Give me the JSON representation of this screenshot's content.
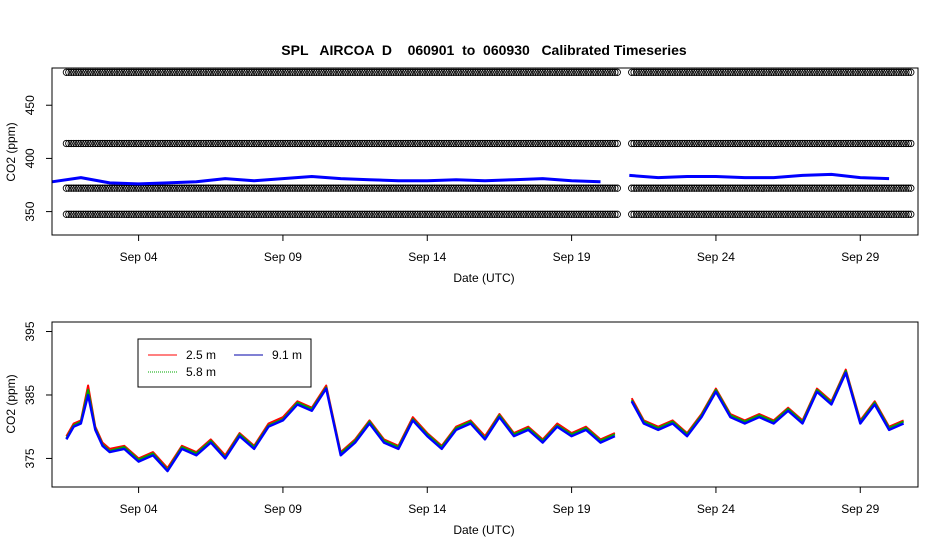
{
  "title": "SPL   AIRCOA  D    060901  to  060930   Calibrated Timeseries",
  "chart_data": [
    {
      "type": "scatter",
      "xlabel": "Date (UTC)",
      "ylabel": "CO2 (ppm)",
      "xlim": [
        "2006-09-01",
        "2006-09-31"
      ],
      "ylim": [
        328,
        485
      ],
      "x_ticks": [
        "Sep 04",
        "Sep 09",
        "Sep 14",
        "Sep 19",
        "Sep 24",
        "Sep 29"
      ],
      "x_tick_dates": [
        "2006-09-04",
        "2006-09-09",
        "2006-09-14",
        "2006-09-19",
        "2006-09-24",
        "2006-09-29"
      ],
      "y_ticks": [
        350,
        400,
        450
      ],
      "data_gap": [
        "2006-09-20T14:00",
        "2006-09-21T01:00"
      ],
      "data_range": [
        "2006-09-01T12:00",
        "2006-09-30T19:00"
      ],
      "calibration_levels": [
        347.5,
        372,
        414,
        481
      ],
      "series": [
        {
          "color": "#000000",
          "marker": "open-circle",
          "values_type": "calibration-standards"
        },
        {
          "color": "#0000ff",
          "marker": "line",
          "x": [
            "2006-09-01",
            "2006-09-02",
            "2006-09-03",
            "2006-09-04",
            "2006-09-05",
            "2006-09-06",
            "2006-09-07",
            "2006-09-08",
            "2006-09-09",
            "2006-09-10",
            "2006-09-11",
            "2006-09-12",
            "2006-09-13",
            "2006-09-14",
            "2006-09-15",
            "2006-09-16",
            "2006-09-17",
            "2006-09-18",
            "2006-09-19",
            "2006-09-20",
            "2006-09-21",
            "2006-09-22",
            "2006-09-23",
            "2006-09-24",
            "2006-09-25",
            "2006-09-26",
            "2006-09-27",
            "2006-09-28",
            "2006-09-29",
            "2006-09-30"
          ],
          "values": [
            378,
            382,
            377,
            376,
            377,
            378,
            381,
            379,
            381,
            383,
            381,
            380,
            379,
            379,
            380,
            379,
            380,
            381,
            379,
            378,
            384,
            382,
            383,
            383,
            382,
            382,
            384,
            385,
            382,
            381
          ]
        }
      ]
    },
    {
      "type": "line",
      "xlabel": "Date (UTC)",
      "ylabel": "CO2 (ppm)",
      "xlim": [
        "2006-09-01",
        "2006-09-31"
      ],
      "ylim": [
        370.5,
        396.5
      ],
      "x_ticks": [
        "Sep 04",
        "Sep 09",
        "Sep 14",
        "Sep 19",
        "Sep 24",
        "Sep 29"
      ],
      "x_tick_dates": [
        "2006-09-04",
        "2006-09-09",
        "2006-09-14",
        "2006-09-19",
        "2006-09-24",
        "2006-09-29"
      ],
      "y_ticks": [
        375,
        385,
        395
      ],
      "legend": {
        "placement": "top-left",
        "entries": [
          "2.5 m",
          "9.1 m",
          "5.8 m"
        ]
      },
      "x": [
        "2006-09-01T12:00",
        "2006-09-01T18:00",
        "2006-09-02T00:00",
        "2006-09-02T06:00",
        "2006-09-02T12:00",
        "2006-09-02T18:00",
        "2006-09-03T00:00",
        "2006-09-03T12:00",
        "2006-09-04T00:00",
        "2006-09-04T12:00",
        "2006-09-05T00:00",
        "2006-09-05T12:00",
        "2006-09-06T00:00",
        "2006-09-06T12:00",
        "2006-09-07T00:00",
        "2006-09-07T12:00",
        "2006-09-08T00:00",
        "2006-09-08T12:00",
        "2006-09-09T00:00",
        "2006-09-09T12:00",
        "2006-09-10T00:00",
        "2006-09-10T12:00",
        "2006-09-11T00:00",
        "2006-09-11T12:00",
        "2006-09-12T00:00",
        "2006-09-12T12:00",
        "2006-09-13T00:00",
        "2006-09-13T12:00",
        "2006-09-14T00:00",
        "2006-09-14T12:00",
        "2006-09-15T00:00",
        "2006-09-15T12:00",
        "2006-09-16T00:00",
        "2006-09-16T12:00",
        "2006-09-17T00:00",
        "2006-09-17T12:00",
        "2006-09-18T00:00",
        "2006-09-18T12:00",
        "2006-09-19T00:00",
        "2006-09-19T12:00",
        "2006-09-20T00:00",
        "2006-09-20T12:00",
        "2006-09-21T02:00",
        "2006-09-21T12:00",
        "2006-09-22T00:00",
        "2006-09-22T12:00",
        "2006-09-23T00:00",
        "2006-09-23T12:00",
        "2006-09-24T00:00",
        "2006-09-24T12:00",
        "2006-09-25T00:00",
        "2006-09-25T12:00",
        "2006-09-26T00:00",
        "2006-09-26T12:00",
        "2006-09-27T00:00",
        "2006-09-27T12:00",
        "2006-09-28T00:00",
        "2006-09-28T12:00",
        "2006-09-29T00:00",
        "2006-09-29T12:00",
        "2006-09-30T00:00",
        "2006-09-30T12:00"
      ],
      "gap_after_index": 41,
      "series": [
        {
          "name": "2.5 m",
          "color": "#ff0000",
          "values": [
            378.5,
            380.5,
            381,
            386.5,
            380,
            377.5,
            376.5,
            377,
            375,
            376,
            373.5,
            377,
            376,
            378,
            375.5,
            379,
            377,
            380.5,
            381.5,
            384,
            383,
            386.5,
            376,
            378,
            381,
            378,
            377,
            381.5,
            379,
            377,
            380,
            381,
            378.5,
            382,
            379,
            380,
            378,
            380.5,
            379,
            380,
            378,
            379,
            384.5,
            381,
            380,
            381,
            379,
            382,
            386,
            382,
            381,
            382,
            381,
            383,
            381,
            386,
            384,
            389,
            381,
            384,
            380,
            381
          ]
        },
        {
          "name": "9.1 m",
          "color": "#0000ff",
          "values": [
            378,
            380,
            380.5,
            385,
            379.5,
            377,
            376,
            376.5,
            374.5,
            375.5,
            373,
            376.5,
            375.5,
            377.5,
            375,
            378.5,
            376.5,
            380,
            381,
            383.5,
            382.5,
            386,
            375.5,
            377.5,
            380.5,
            377.5,
            376.5,
            381,
            378.5,
            376.5,
            379.5,
            380.5,
            378,
            381.5,
            378.5,
            379.5,
            377.5,
            380,
            378.5,
            379.5,
            377.5,
            378.5,
            384,
            380.5,
            379.5,
            380.5,
            378.5,
            381.5,
            385.5,
            381.5,
            380.5,
            381.5,
            380.5,
            382.5,
            380.5,
            385.5,
            383.5,
            388.5,
            380.5,
            383.5,
            379.5,
            380.5
          ]
        },
        {
          "name": "5.8 m",
          "color": "#00aa00",
          "values": [
            378.2,
            380.2,
            380.8,
            385.8,
            379.8,
            377.2,
            376.2,
            376.8,
            374.8,
            375.8,
            373.2,
            376.8,
            375.8,
            377.8,
            375.2,
            378.8,
            376.8,
            380.2,
            381.2,
            383.8,
            382.8,
            386.2,
            375.8,
            377.8,
            380.8,
            377.8,
            376.8,
            381.2,
            378.8,
            376.8,
            379.8,
            380.8,
            378.2,
            381.8,
            378.8,
            379.8,
            377.8,
            380.2,
            378.8,
            379.8,
            377.8,
            378.8,
            384.2,
            380.8,
            379.8,
            380.8,
            378.8,
            381.8,
            385.8,
            381.8,
            380.8,
            381.8,
            380.8,
            382.8,
            380.8,
            385.8,
            383.8,
            388.8,
            380.8,
            383.8,
            379.8,
            380.8
          ]
        }
      ]
    }
  ]
}
